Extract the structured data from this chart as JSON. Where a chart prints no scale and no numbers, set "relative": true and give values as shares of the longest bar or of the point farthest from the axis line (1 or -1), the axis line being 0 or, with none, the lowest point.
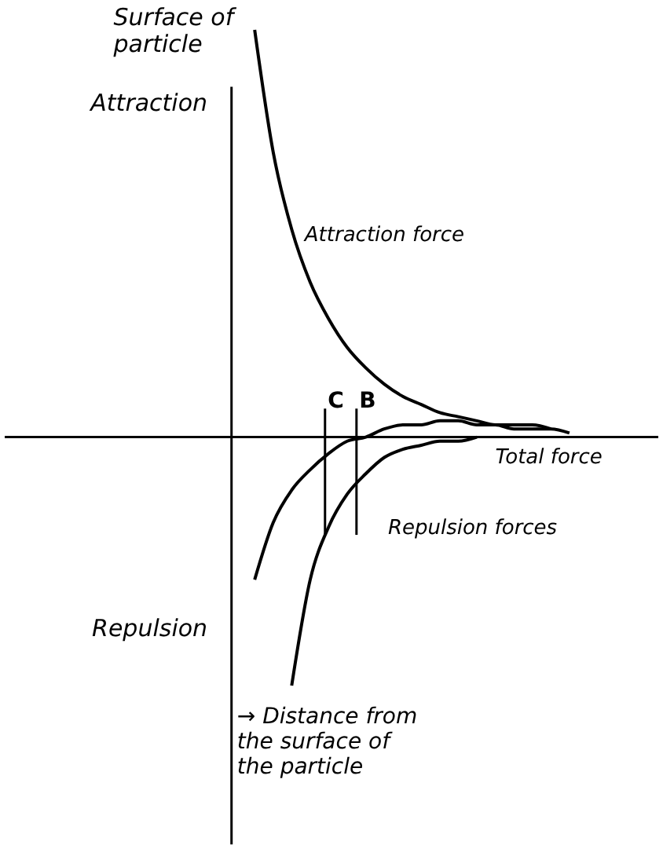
{
  "chart_data": {
    "type": "line",
    "relative": true,
    "ylabel": "Surface of particle",
    "xlabel": "→ Distance from the surface of the particle",
    "annotations": [
      "Attraction",
      "Repulsion",
      "C",
      "B"
    ],
    "categories": [
      null,
      null,
      null,
      null,
      null,
      null,
      null,
      null,
      null,
      null,
      null,
      null,
      null,
      null,
      null,
      null,
      null,
      null,
      null,
      null,
      null
    ],
    "series": [
      {
        "name": "Attraction force",
        "color": "#000000",
        "values": [
          1,
          0.7,
          0.51,
          0.38,
          0.29,
          0.22,
          0.17,
          0.13,
          0.1,
          0.08,
          0.06,
          0.05,
          0.04,
          0.03,
          0.03,
          0.03,
          0.02,
          null,
          null,
          null,
          null
        ]
      },
      {
        "name": "Total force",
        "color": "#000000",
        "values": [
          -0.35,
          -0.21,
          -0.13,
          -0.08,
          -0.04,
          -0.01,
          0.0,
          0.02,
          0.03,
          0.03,
          0.04,
          0.04,
          0.03,
          0.03,
          0.02,
          0.02,
          0.02,
          0.01,
          null,
          null,
          null
        ]
      },
      {
        "name": "Repulsion forces",
        "color": "#000000",
        "values": [
          null,
          null,
          -0.61,
          -0.35,
          -0.22,
          -0.14,
          -0.09,
          -0.05,
          -0.03,
          -0.02,
          -0.01,
          -0.01,
          0.0,
          null,
          null,
          null,
          null,
          null,
          null,
          null,
          null
        ]
      }
    ],
    "grid": false,
    "marker": "none",
    "line_style": "solid"
  }
}
